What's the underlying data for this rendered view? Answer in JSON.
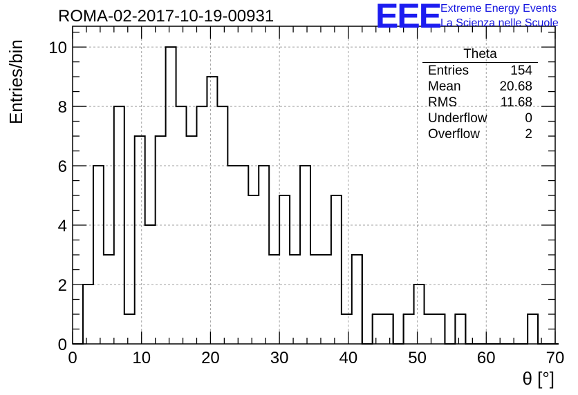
{
  "header": {
    "title": "ROMA-02-2017-10-19-00931",
    "logo": "EEE",
    "org_line1": "Extreme Energy Events",
    "org_line2": "La Scienza nelle Scuole"
  },
  "stats": {
    "title": "Theta",
    "rows": [
      {
        "label": "Entries",
        "value": "154"
      },
      {
        "label": "Mean",
        "value": "20.68"
      },
      {
        "label": "RMS",
        "value": "11.68"
      },
      {
        "label": "Underflow",
        "value": "0"
      },
      {
        "label": "Overflow",
        "value": "2"
      }
    ]
  },
  "chart_data": {
    "type": "bar",
    "title": "ROMA-02-2017-10-19-00931",
    "xlabel": "θ [°]",
    "ylabel": "Entries/bin",
    "xlim": [
      0,
      70
    ],
    "ylim": [
      0,
      10.7
    ],
    "xticks": [
      0,
      10,
      20,
      30,
      40,
      50,
      60,
      70
    ],
    "yticks": [
      0,
      2,
      4,
      6,
      8,
      10
    ],
    "grid": true,
    "bin_width": 1.5,
    "bin_start": 0,
    "values": [
      0,
      2,
      6,
      3,
      8,
      1,
      7,
      4,
      7,
      10,
      8,
      7,
      8,
      9,
      8,
      6,
      6,
      5,
      6,
      3,
      5,
      3,
      6,
      3,
      3,
      5,
      1,
      3,
      0,
      1,
      1,
      0,
      1,
      2,
      1,
      1,
      0,
      1,
      0,
      0,
      0,
      0,
      0,
      0,
      1,
      0,
      0
    ],
    "colors": {
      "line": "#000000",
      "grid": "#a0a0a0"
    }
  }
}
